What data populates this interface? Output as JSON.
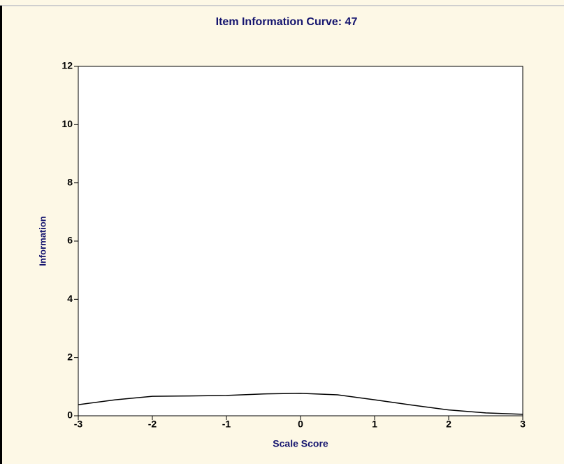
{
  "chart_data": {
    "type": "line",
    "title": "Item Information Curve: 47",
    "x_label": "Scale Score",
    "y_label": "Information",
    "x": [
      -3,
      -2.5,
      -2,
      -1.5,
      -1,
      -0.5,
      0,
      0.5,
      1,
      1.5,
      2,
      2.5,
      3
    ],
    "series": [
      {
        "name": "Information",
        "color": "#000000",
        "values": [
          0.38,
          0.55,
          0.67,
          0.68,
          0.7,
          0.75,
          0.77,
          0.72,
          0.55,
          0.37,
          0.2,
          0.1,
          0.05
        ]
      }
    ],
    "xlim": [
      -3,
      3
    ],
    "xticks": [
      -3,
      -2,
      -1,
      0,
      1,
      2,
      3
    ],
    "ylim": [
      0,
      12
    ],
    "yticks": [
      0,
      2,
      4,
      6,
      8,
      10,
      12
    ]
  }
}
